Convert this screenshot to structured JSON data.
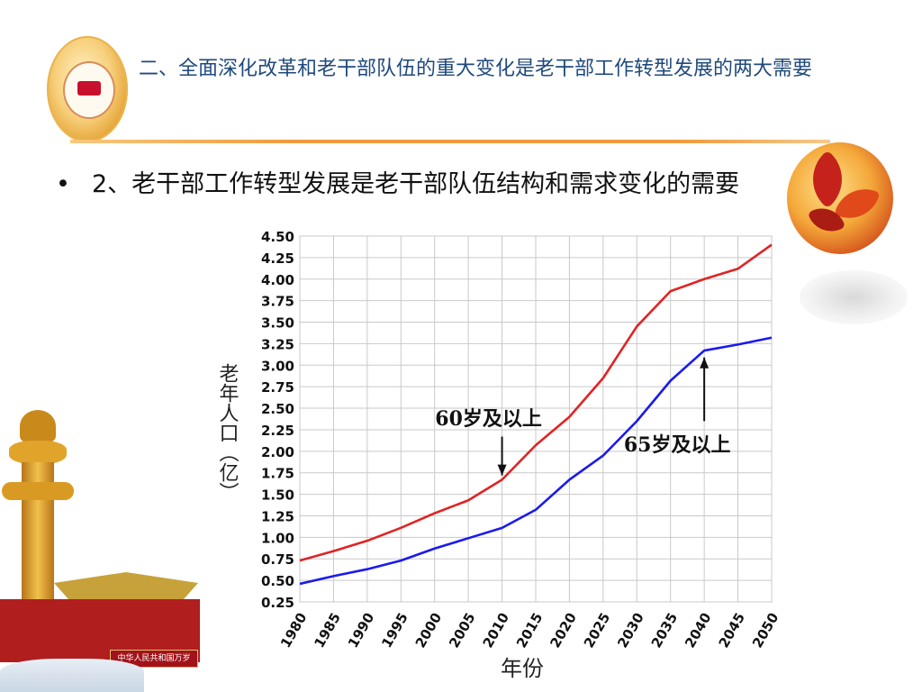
{
  "slide": {
    "title": "二、全面深化改革和老干部队伍的重大变化是老干部工作转型发展的两大需要",
    "bullet_marker": "•",
    "bullet_text": "2、老干部工作转型发展是老干部队伍结构和需求变化的需要"
  },
  "decor": {
    "logo_icon": "party-emblem-icon",
    "leaves_icon": "maple-leaves-icon",
    "pillar_icon": "huabiao-pillar-icon",
    "gate_icon": "tiananmen-gate-icon",
    "gate_plaque_text": "中华人民共和国万岁"
  },
  "chart_data": {
    "type": "line",
    "title": "",
    "xlabel": "年份",
    "ylabel": "老年人口（亿）",
    "x": [
      1980,
      1985,
      1990,
      1995,
      2000,
      2005,
      2010,
      2015,
      2020,
      2025,
      2030,
      2035,
      2040,
      2045,
      2050
    ],
    "x_tick_labels": [
      "1980",
      "1985",
      "1990",
      "1995",
      "2000",
      "2005",
      "2010",
      "2015",
      "2020",
      "2025",
      "2030",
      "2035",
      "2040",
      "2045",
      "2050"
    ],
    "ylim": [
      0.25,
      4.5
    ],
    "y_ticks": [
      0.25,
      0.5,
      0.75,
      1.0,
      1.25,
      1.5,
      1.75,
      2.0,
      2.25,
      2.5,
      2.75,
      3.0,
      3.25,
      3.5,
      3.75,
      4.0,
      4.25,
      4.5
    ],
    "y_tick_labels": [
      "0.25",
      "0.50",
      "0.75",
      "1.00",
      "1.25",
      "1.50",
      "1.75",
      "2.00",
      "2.25",
      "2.50",
      "2.75",
      "3.00",
      "3.25",
      "3.50",
      "3.75",
      "4.00",
      "4.25",
      "4.50"
    ],
    "grid": true,
    "series": [
      {
        "name": "60岁及以上",
        "color": "#e02424",
        "values": [
          0.73,
          0.84,
          0.96,
          1.11,
          1.28,
          1.43,
          1.67,
          2.07,
          2.4,
          2.85,
          3.45,
          3.86,
          4.0,
          4.12,
          4.4
        ]
      },
      {
        "name": "65岁及以上",
        "color": "#1a1aee",
        "values": [
          0.46,
          0.55,
          0.63,
          0.73,
          0.87,
          0.99,
          1.11,
          1.32,
          1.67,
          1.95,
          2.35,
          2.82,
          3.17,
          3.24,
          3.32
        ]
      }
    ],
    "annotations": [
      {
        "text": "60岁及以上",
        "series": 0,
        "arrow_x": 2010,
        "arrow_y_from": 2.17,
        "arrow_y_to": 1.72,
        "label_x": 2008,
        "label_y": 2.3
      },
      {
        "text": "65岁及以上",
        "series": 1,
        "arrow_x": 2040,
        "arrow_y_from": 2.35,
        "arrow_y_to": 3.09,
        "label_x": 2036,
        "label_y": 2.0
      }
    ]
  }
}
